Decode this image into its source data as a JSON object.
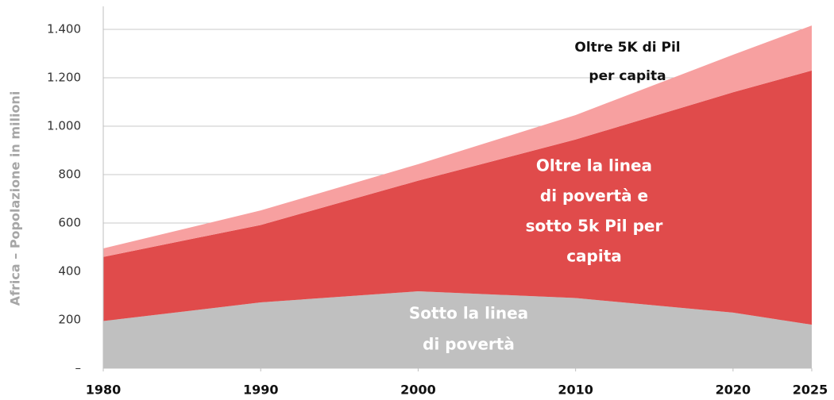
{
  "chart_data": {
    "type": "stacked_area",
    "y_label": "Africa – Popolazione in milioni",
    "x": [
      1980,
      1990,
      2000,
      2010,
      2020,
      2025
    ],
    "xlim": [
      1980,
      2025
    ],
    "xticks": [
      1980,
      1990,
      2000,
      2010,
      2020,
      2025
    ],
    "ylim": [
      0,
      1400
    ],
    "yticks": [
      {
        "value": 0,
        "label": "–"
      },
      200,
      400,
      600,
      800,
      {
        "value": 1000,
        "label": "1.000"
      },
      {
        "value": 1200,
        "label": "1.200"
      },
      {
        "value": 1400,
        "label": "1.400"
      }
    ],
    "grid": true,
    "series": [
      {
        "name": "Sotto la linea di povertà",
        "color": "#c0c0c0",
        "values": [
          195,
          272,
          318,
          290,
          230,
          180
        ]
      },
      {
        "name": "Oltre la linea di povertà e sotto 5k Pil per capita",
        "color": "#e04b4b",
        "values": [
          265,
          320,
          457,
          655,
          910,
          1050
        ]
      },
      {
        "name": "Oltre 5K di Pil per capita",
        "color": "#f7a0a0",
        "values": [
          35,
          60,
          68,
          101,
          155,
          186
        ]
      }
    ],
    "annotations": [
      {
        "lines": [
          "Oltre 5K di Pil",
          "per capita"
        ]
      },
      {
        "lines": [
          "Oltre la linea",
          "di povertà e",
          "sotto 5k Pil per",
          "capita"
        ]
      },
      {
        "lines": [
          "Sotto la linea",
          "di povertà"
        ]
      }
    ]
  }
}
